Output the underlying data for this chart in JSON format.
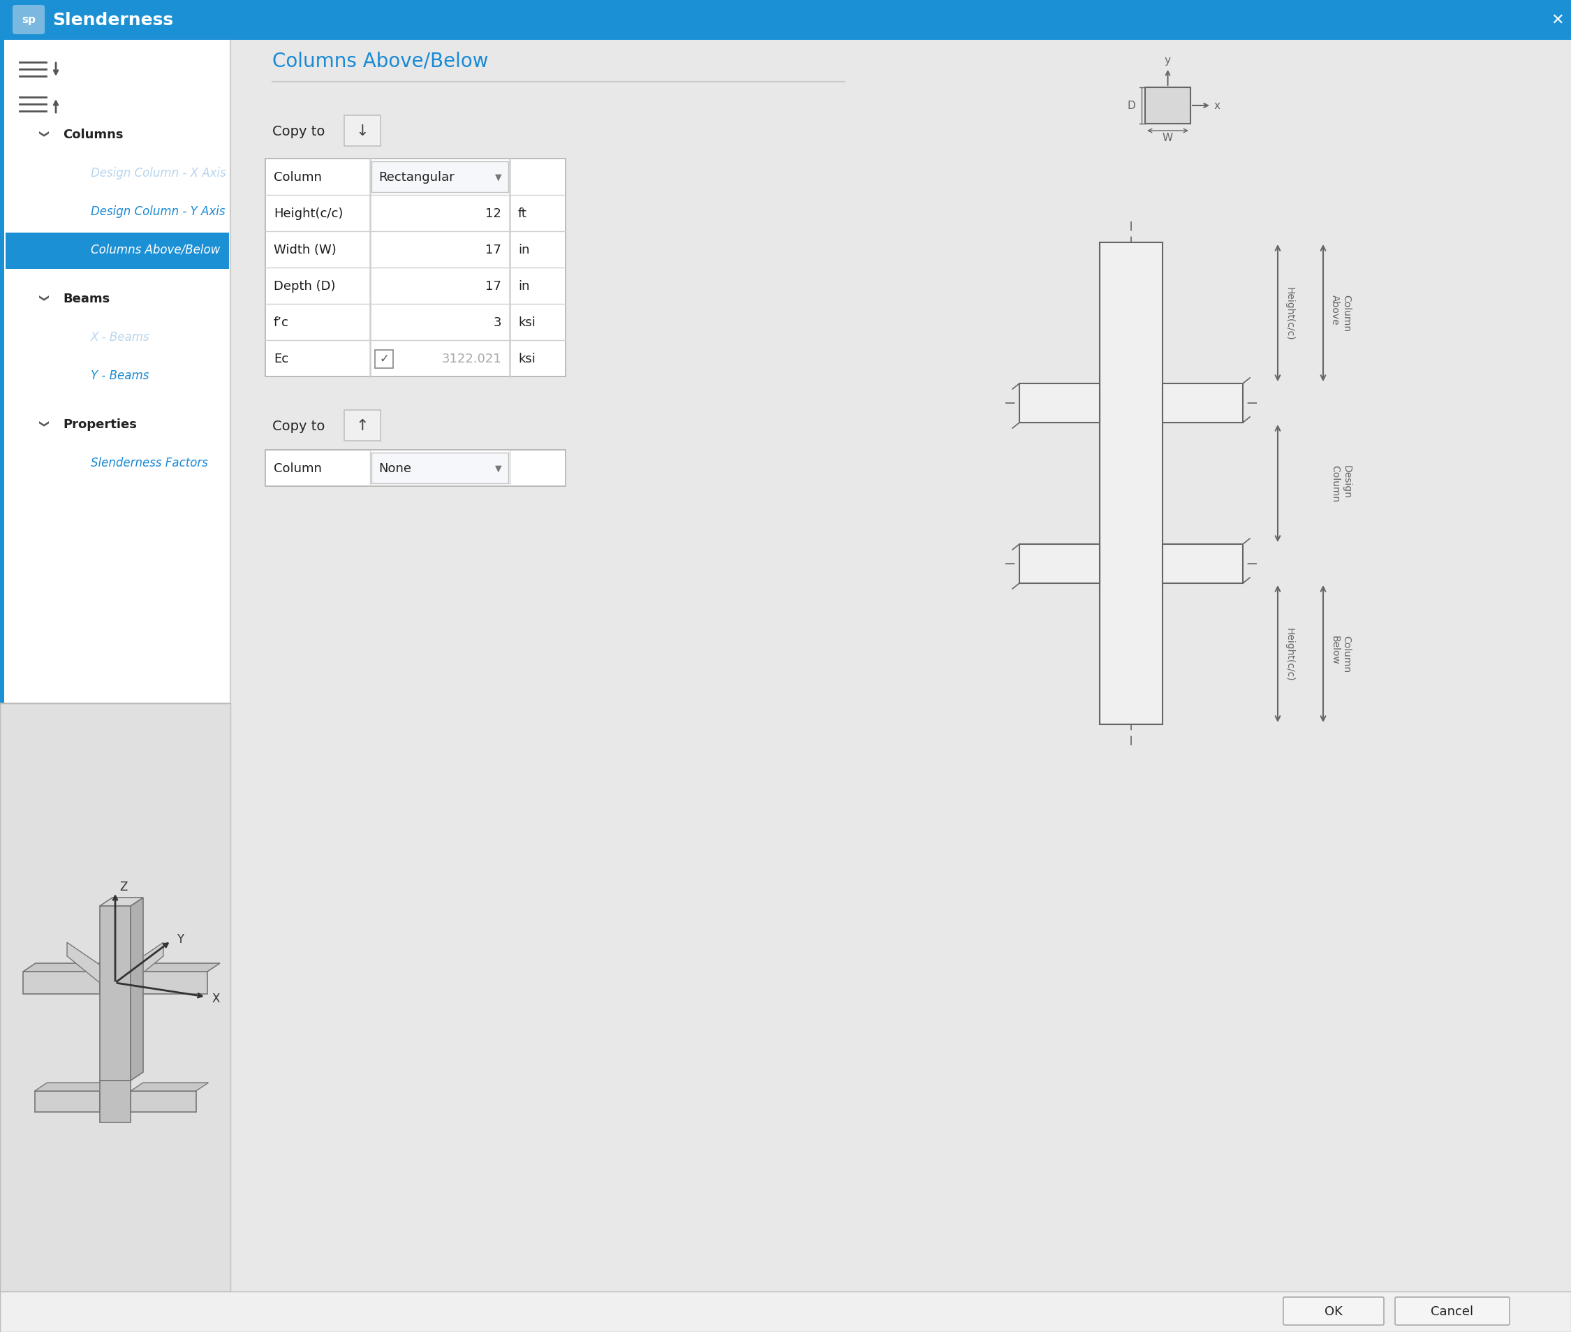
{
  "title_bar_color": "#1c90d4",
  "title_bar_text": "Slenderness",
  "bg_color": "#e8e8e8",
  "left_panel_bg": "#ffffff",
  "right_panel_bg": "#e8e8e8",
  "nav_items": [
    {
      "text": "Columns",
      "level": 0,
      "bold": true,
      "color": "#222222",
      "italic": false
    },
    {
      "text": "Design Column - X Axis",
      "level": 1,
      "bold": false,
      "color": "#b8d4ee",
      "italic": true
    },
    {
      "text": "Design Column - Y Axis",
      "level": 1,
      "bold": false,
      "color": "#1a8ad4",
      "italic": true
    },
    {
      "text": "Columns Above/Below",
      "level": 1,
      "bold": false,
      "color": "#ffffff",
      "italic": true,
      "selected": true
    },
    {
      "text": "Beams",
      "level": 0,
      "bold": true,
      "color": "#222222",
      "italic": false
    },
    {
      "text": "X - Beams",
      "level": 1,
      "bold": false,
      "color": "#b8d4ee",
      "italic": true
    },
    {
      "text": "Y - Beams",
      "level": 1,
      "bold": false,
      "color": "#1a8ad4",
      "italic": true
    },
    {
      "text": "Properties",
      "level": 0,
      "bold": true,
      "color": "#222222",
      "italic": false
    },
    {
      "text": "Slenderness Factors",
      "level": 1,
      "bold": false,
      "color": "#1a8ad4",
      "italic": true
    }
  ],
  "section_title": "Columns Above/Below",
  "section_title_color": "#1a8ad4",
  "table_rows": [
    {
      "label": "Column",
      "value": "Rectangular",
      "unit": "",
      "dropdown": true,
      "greyed": false
    },
    {
      "label": "Height(c/c)",
      "value": "12",
      "unit": "ft",
      "dropdown": false,
      "greyed": false
    },
    {
      "label": "Width (W)",
      "value": "17",
      "unit": "in",
      "dropdown": false,
      "greyed": false
    },
    {
      "label": "Depth (D)",
      "value": "17",
      "unit": "in",
      "dropdown": false,
      "greyed": false
    },
    {
      "label": "f’c",
      "value": "3",
      "unit": "ksi",
      "dropdown": false,
      "greyed": false
    },
    {
      "label": "Ec",
      "value": "3122.021",
      "unit": "ksi",
      "dropdown": false,
      "checkbox": true,
      "greyed": true
    }
  ],
  "table2_rows": [
    {
      "label": "Column",
      "value": "None",
      "unit": "",
      "dropdown": true
    }
  ],
  "ok_btn": "OK",
  "cancel_btn": "Cancel",
  "lc": "#666666",
  "diag_bg": "#e8e8e8"
}
